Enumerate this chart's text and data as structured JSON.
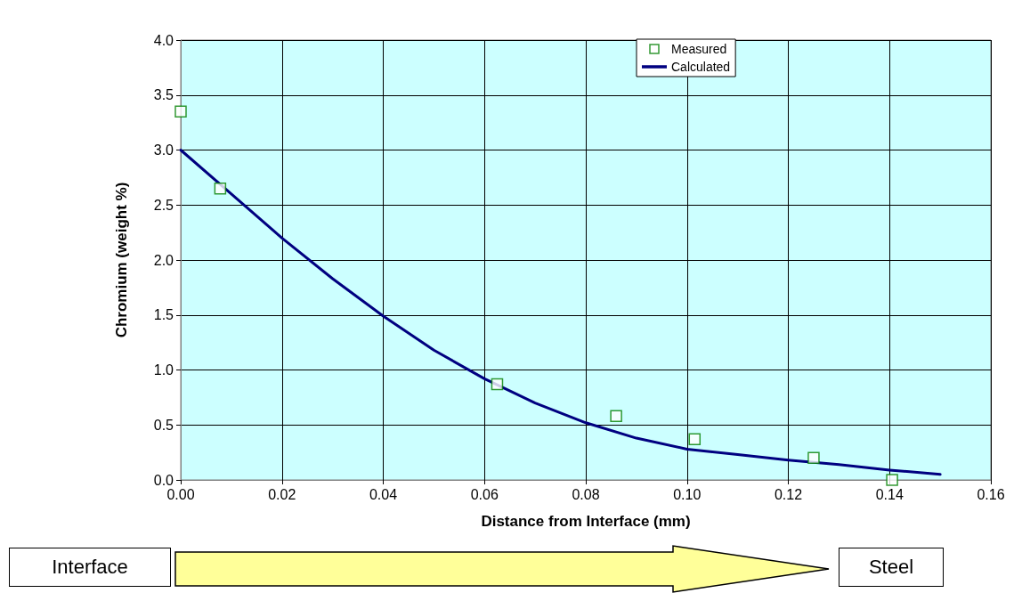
{
  "chart_data": {
    "type": "scatter",
    "xlabel": "Distance from Interface (mm)",
    "ylabel": "Chromium (weight %)",
    "series": [
      {
        "name": "Measured",
        "marker": "square",
        "color": "#008000",
        "x": [
          0,
          0.0078,
          0.0625,
          0.086,
          0.1015,
          0.125,
          0.1405
        ],
        "values": [
          3.35,
          2.65,
          0.87,
          0.58,
          0.37,
          0.2,
          0.0
        ]
      },
      {
        "name": "Calculated",
        "type": "line",
        "marker": "none",
        "line_style": "solid",
        "color": "#000080",
        "x": [
          0,
          0.01,
          0.02,
          0.03,
          0.04,
          0.05,
          0.06,
          0.07,
          0.08,
          0.09,
          0.1,
          0.11,
          0.12,
          0.13,
          0.14,
          0.15
        ],
        "values": [
          3.0,
          2.6,
          2.2,
          1.83,
          1.49,
          1.18,
          0.92,
          0.7,
          0.52,
          0.38,
          0.28,
          0.23,
          0.18,
          0.14,
          0.09,
          0.05
        ]
      }
    ],
    "xlim": [
      0,
      0.16
    ],
    "xticks": [
      {
        "value": 0,
        "label": "0.00"
      },
      {
        "value": 0.02,
        "label": "0.02"
      },
      {
        "value": 0.04,
        "label": "0.04"
      },
      {
        "value": 0.06,
        "label": "0.06"
      },
      {
        "value": 0.08,
        "label": "0.08"
      },
      {
        "value": 0.1,
        "label": "0.10"
      },
      {
        "value": 0.12,
        "label": "0.12"
      },
      {
        "value": 0.14,
        "label": "0.14"
      },
      {
        "value": 0.16,
        "label": "0.16"
      }
    ],
    "ylim": [
      0,
      4
    ],
    "yticks": [
      {
        "value": 0,
        "label": "0.0"
      },
      {
        "value": 0.5,
        "label": "0.5"
      },
      {
        "value": 1,
        "label": "1.0"
      },
      {
        "value": 1.5,
        "label": "1.5"
      },
      {
        "value": 2,
        "label": "2.0"
      },
      {
        "value": 2.5,
        "label": "2.5"
      },
      {
        "value": 3,
        "label": "3.0"
      },
      {
        "value": 3.5,
        "label": "3.5"
      },
      {
        "value": 4,
        "label": "4.0"
      }
    ],
    "grid": true,
    "legend": "top right",
    "annotations": [
      "Interface",
      "Steel"
    ]
  }
}
